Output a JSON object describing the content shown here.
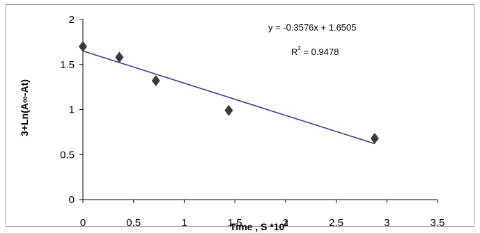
{
  "chart_data": {
    "type": "scatter",
    "title": "",
    "xlabel": "Time , S *10",
    "xlabel_superscript": "3",
    "ylabel": "3+Ln(A∞-At)",
    "xlim": [
      0,
      3.5
    ],
    "ylim": [
      0,
      2
    ],
    "xticks": [
      0,
      0.5,
      1,
      1.5,
      2,
      2.5,
      3,
      3.5
    ],
    "yticks": [
      0,
      0.5,
      1,
      1.5,
      2
    ],
    "xtick_labels": [
      "0",
      "0.5",
      "1",
      "1.5",
      "2",
      "2.5",
      "3",
      "3.5"
    ],
    "ytick_labels": [
      "0",
      "0.5",
      "1",
      "1.5",
      "2"
    ],
    "grid": false,
    "legend": "none",
    "series": [
      {
        "marker": "diamond",
        "x": [
          0,
          0.36,
          0.72,
          1.44,
          2.88
        ],
        "y": [
          1.7,
          1.58,
          1.32,
          0.99,
          0.68
        ]
      }
    ],
    "trendline": {
      "type": "linear",
      "slope": -0.3576,
      "intercept": 1.6505,
      "x_range": [
        0,
        2.88
      ],
      "color": "#2f3f8f"
    },
    "annotations": {
      "equation": "y = -0.3576x + 1.6505",
      "r2_prefix": "R",
      "r2_superscript": "2",
      "r2_value": " = 0.9478"
    },
    "marker_color": "#3a3a3a",
    "axis_color": "#000000"
  }
}
